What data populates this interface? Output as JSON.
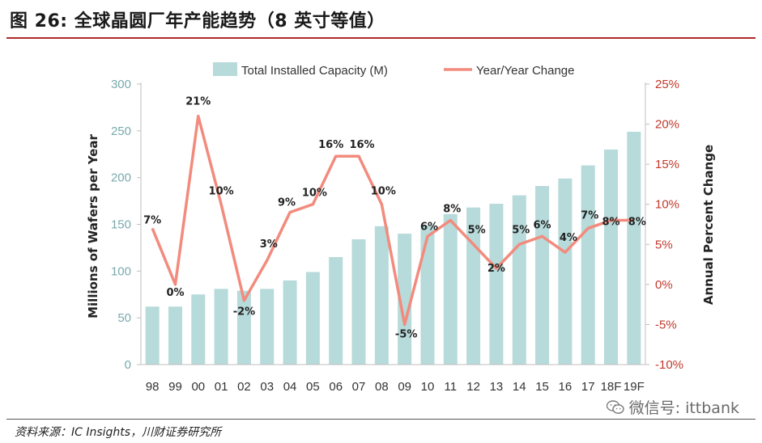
{
  "page": {
    "figure_title": "图 26:  全球晶圆厂年产能趋势（8 英寸等值）",
    "source": "资料来源：IC Insights，川财证券研究所",
    "watermark": "微信号: ittbank",
    "watermark_icon": "wechat-icon"
  },
  "colors": {
    "bar": "#b7dada",
    "line": "#f28b7d",
    "left_axis": "#79a9ad",
    "right_axis": "#c0392b",
    "title_rule": "#b02a2a"
  },
  "chart_data": {
    "type": "bar",
    "categories": [
      "98",
      "99",
      "00",
      "01",
      "02",
      "03",
      "04",
      "05",
      "06",
      "07",
      "08",
      "09",
      "10",
      "11",
      "12",
      "13",
      "14",
      "15",
      "16",
      "17",
      "18F",
      "19F"
    ],
    "series": [
      {
        "name": "Total Installed Capacity (M)",
        "type": "bar",
        "axis": "left",
        "values": [
          62,
          62,
          75,
          81,
          79,
          81,
          90,
          99,
          115,
          134,
          148,
          140,
          149,
          161,
          168,
          172,
          181,
          191,
          199,
          213,
          230,
          249
        ]
      },
      {
        "name": "Year/Year Change",
        "type": "line",
        "axis": "right",
        "values": [
          7,
          0,
          21,
          10,
          -2,
          3,
          9,
          10,
          16,
          16,
          10,
          -5,
          6,
          8,
          5,
          2,
          5,
          6,
          4,
          7,
          8,
          8
        ],
        "labels": [
          "7%",
          "0%",
          "21%",
          "10%",
          "-2%",
          "3%",
          "9%",
          "10%",
          "16%",
          "16%",
          "10%",
          "-5%",
          "6%",
          "8%",
          "5%",
          "2%",
          "5%",
          "6%",
          "4%",
          "7%",
          "8%",
          "8%"
        ]
      }
    ],
    "ylabel": "Millions of Wafers per Year",
    "ylabel_right": "Annual Percent Change",
    "ylim": [
      0,
      300
    ],
    "yticks": [
      "0",
      "50",
      "100",
      "150",
      "200",
      "250",
      "300"
    ],
    "ylim_right": [
      -10,
      25
    ],
    "yticks_right": [
      "-10%",
      "-5%",
      "0%",
      "5%",
      "10%",
      "15%",
      "20%",
      "25%"
    ],
    "grid": false,
    "legend_position": "top"
  }
}
